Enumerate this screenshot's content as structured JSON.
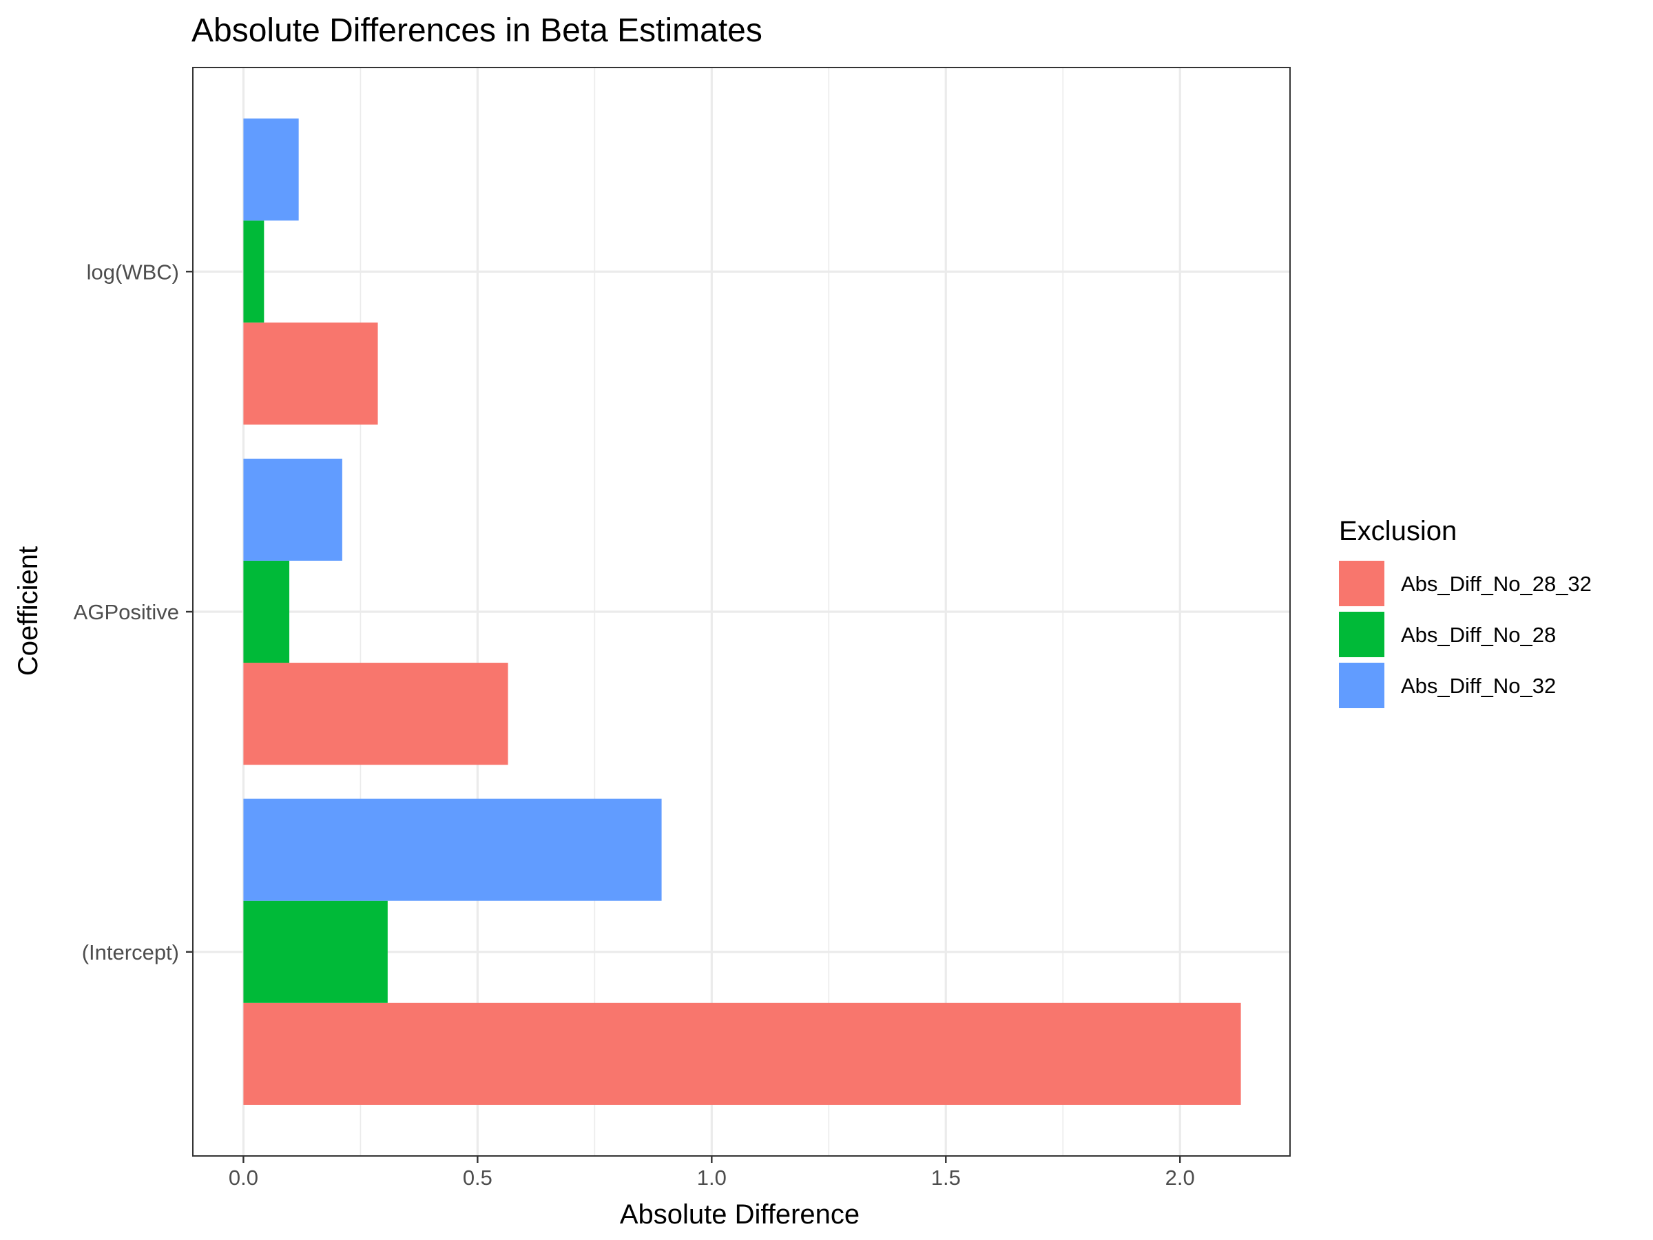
{
  "chart_data": {
    "type": "bar",
    "orientation": "horizontal",
    "title": "Absolute Differences in Beta Estimates",
    "xlabel": "Absolute Difference",
    "ylabel": "Coefficient",
    "xlim": [
      -0.108,
      2.235
    ],
    "x_ticks": [
      "0.0",
      "0.5",
      "1.0",
      "1.5",
      "2.0"
    ],
    "categories": [
      "(Intercept)",
      "AGPositive",
      "log(WBC)"
    ],
    "series": [
      {
        "name": "Abs_Diff_No_28_32",
        "color": "#F8766D",
        "values": [
          2.13,
          0.565,
          0.287
        ]
      },
      {
        "name": "Abs_Diff_No_28",
        "color": "#00BA38",
        "values": [
          0.308,
          0.098,
          0.044
        ]
      },
      {
        "name": "Abs_Diff_No_32",
        "color": "#619CFF",
        "values": [
          0.893,
          0.211,
          0.118
        ]
      }
    ],
    "grid": true,
    "legend": {
      "title": "Exclusion",
      "position": "right"
    }
  }
}
